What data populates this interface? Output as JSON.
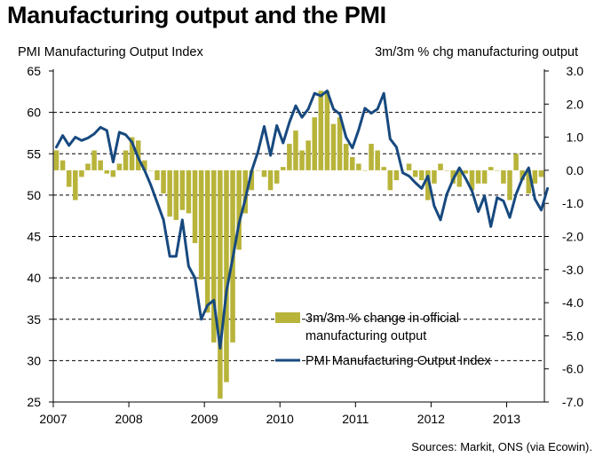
{
  "title": "Manufacturing output and the PMI",
  "source": "Sources: Markit, ONS (via Ecowin).",
  "colors": {
    "bars": "#b8b43a",
    "line": "#17497f",
    "grid": "#000000"
  },
  "chart_data": {
    "type": "bar+line",
    "xlabel": "",
    "x_ticks": [
      "2007",
      "2008",
      "2009",
      "2010",
      "2011",
      "2012",
      "2013"
    ],
    "x_range": [
      2007.0,
      2013.5
    ],
    "left_axis": {
      "label": "PMI Manufacturing Output Index",
      "range": [
        25,
        65
      ],
      "ticks": [
        "65",
        "60",
        "55",
        "50",
        "45",
        "40",
        "35",
        "30",
        "25"
      ]
    },
    "right_axis": {
      "label": "3m/3m % chg manufacturing output",
      "range": [
        -7.0,
        3.0
      ],
      "ticks": [
        "3.0",
        "2.0",
        "1.0",
        "0.0",
        "-1.0",
        "-2.0",
        "-3.0",
        "-4.0",
        "-5.0",
        "-6.0",
        "-7.0"
      ]
    },
    "grid": "horizontal dashed",
    "legend_position": "lower-center",
    "series": [
      {
        "name": "3m/3m % change in official manufacturing output",
        "type": "bar",
        "axis": "right",
        "start": "2007-01",
        "frequency": "monthly",
        "values": [
          0.6,
          0.3,
          -0.5,
          -0.9,
          -0.2,
          0.2,
          0.6,
          0.3,
          -0.1,
          -0.2,
          0.2,
          0.6,
          1.0,
          0.9,
          0.3,
          0.0,
          -0.3,
          -0.7,
          -1.4,
          -1.5,
          -1.2,
          -1.3,
          -2.2,
          -3.3,
          -4.3,
          -5.2,
          -6.9,
          -6.4,
          -5.2,
          -2.4,
          -1.3,
          -0.6,
          0.0,
          -0.2,
          -0.6,
          -0.4,
          0.1,
          0.8,
          1.2,
          0.6,
          0.9,
          1.6,
          2.4,
          2.4,
          1.4,
          1.6,
          0.8,
          0.4,
          0.2,
          0.0,
          0.8,
          0.6,
          0.1,
          -0.6,
          -0.3,
          0.0,
          0.2,
          -0.2,
          -0.3,
          -0.9,
          -0.4,
          0.2,
          0.0,
          -0.4,
          -0.5,
          -0.1,
          -0.6,
          -0.4,
          -0.4,
          0.1,
          0.0,
          -0.4,
          -0.9,
          0.5,
          -0.3,
          -0.7,
          -0.4,
          -0.2
        ]
      },
      {
        "name": "PMI Manufacturing Output Index",
        "type": "line",
        "axis": "left",
        "start": "2007-01",
        "frequency": "monthly",
        "values": [
          55.8,
          57.2,
          56.0,
          57.0,
          56.6,
          56.9,
          57.4,
          58.2,
          57.8,
          54.0,
          57.6,
          57.3,
          56.4,
          54.5,
          53.0,
          51.2,
          49.1,
          47.0,
          42.6,
          42.6,
          47.0,
          41.4,
          40.0,
          35.0,
          36.7,
          37.3,
          31.5,
          38.4,
          42.4,
          46.6,
          49.5,
          52.9,
          55.2,
          58.3,
          54.8,
          58.4,
          56.3,
          58.8,
          60.8,
          59.4,
          60.4,
          62.3,
          62.0,
          62.6,
          60.4,
          59.8,
          57.0,
          55.7,
          57.9,
          60.5,
          59.9,
          60.4,
          62.3,
          56.8,
          55.8,
          52.7,
          52.3,
          51.5,
          50.8,
          52.3,
          48.7,
          47.0,
          50.1,
          51.9,
          53.3,
          52.0,
          50.5,
          48.0,
          49.9,
          46.2,
          49.7,
          49.3,
          47.3,
          50.1,
          52.0,
          53.3,
          49.5,
          48.2,
          50.8
        ]
      }
    ]
  }
}
